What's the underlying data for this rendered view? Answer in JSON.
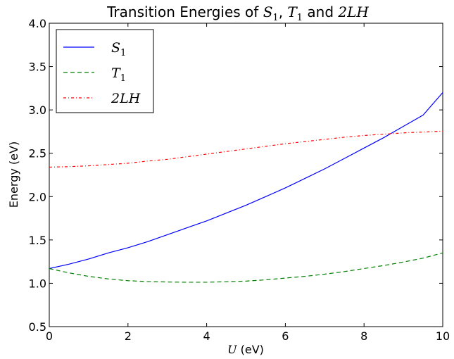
{
  "chart_data": {
    "type": "line",
    "title": {
      "prefix": "Transition Energies of ",
      "sep1": ", ",
      "sep2": " and ",
      "s_main": "S",
      "s_sub": "1",
      "t_main": "T",
      "t_sub": "1",
      "lh": "2LH"
    },
    "xlabel": {
      "math": "U",
      "rest": " (eV)"
    },
    "ylabel": "Energy (eV)",
    "xlim": [
      0,
      10
    ],
    "ylim": [
      0.5,
      4.0
    ],
    "xticks": [
      0,
      2,
      4,
      6,
      8,
      10
    ],
    "xtick_labels": [
      "0",
      "2",
      "4",
      "6",
      "8",
      "10"
    ],
    "yticks": [
      0.5,
      1.0,
      1.5,
      2.0,
      2.5,
      3.0,
      3.5,
      4.0
    ],
    "ytick_labels": [
      "0.5",
      "1.0",
      "1.5",
      "2.0",
      "2.5",
      "3.0",
      "3.5",
      "4.0"
    ],
    "grid": false,
    "legend_position": "top-left",
    "x": [
      0,
      0.5,
      1,
      1.5,
      2,
      2.5,
      3,
      3.5,
      4,
      4.5,
      5,
      5.5,
      6,
      6.5,
      7,
      7.5,
      8,
      8.5,
      9,
      9.5,
      10
    ],
    "series": [
      {
        "name": {
          "main": "S",
          "sub": "1"
        },
        "color": "#0000ff",
        "style": "solid",
        "values": [
          1.17,
          1.22,
          1.28,
          1.35,
          1.41,
          1.48,
          1.56,
          1.64,
          1.72,
          1.81,
          1.9,
          2.0,
          2.1,
          2.21,
          2.32,
          2.44,
          2.56,
          2.68,
          2.81,
          2.94,
          3.2
        ]
      },
      {
        "name": {
          "main": "T",
          "sub": "1"
        },
        "color": "#008000",
        "style": "dashed",
        "values": [
          1.17,
          1.12,
          1.08,
          1.05,
          1.03,
          1.02,
          1.015,
          1.012,
          1.012,
          1.018,
          1.025,
          1.04,
          1.06,
          1.08,
          1.105,
          1.135,
          1.17,
          1.205,
          1.245,
          1.29,
          1.35
        ]
      },
      {
        "name": {
          "main": "2LH",
          "sub": ""
        },
        "color": "#ff0000",
        "style": "dashdot",
        "values": [
          2.34,
          2.345,
          2.355,
          2.37,
          2.385,
          2.41,
          2.43,
          2.46,
          2.49,
          2.52,
          2.55,
          2.58,
          2.61,
          2.635,
          2.66,
          2.685,
          2.705,
          2.72,
          2.735,
          2.745,
          2.755
        ]
      }
    ]
  }
}
